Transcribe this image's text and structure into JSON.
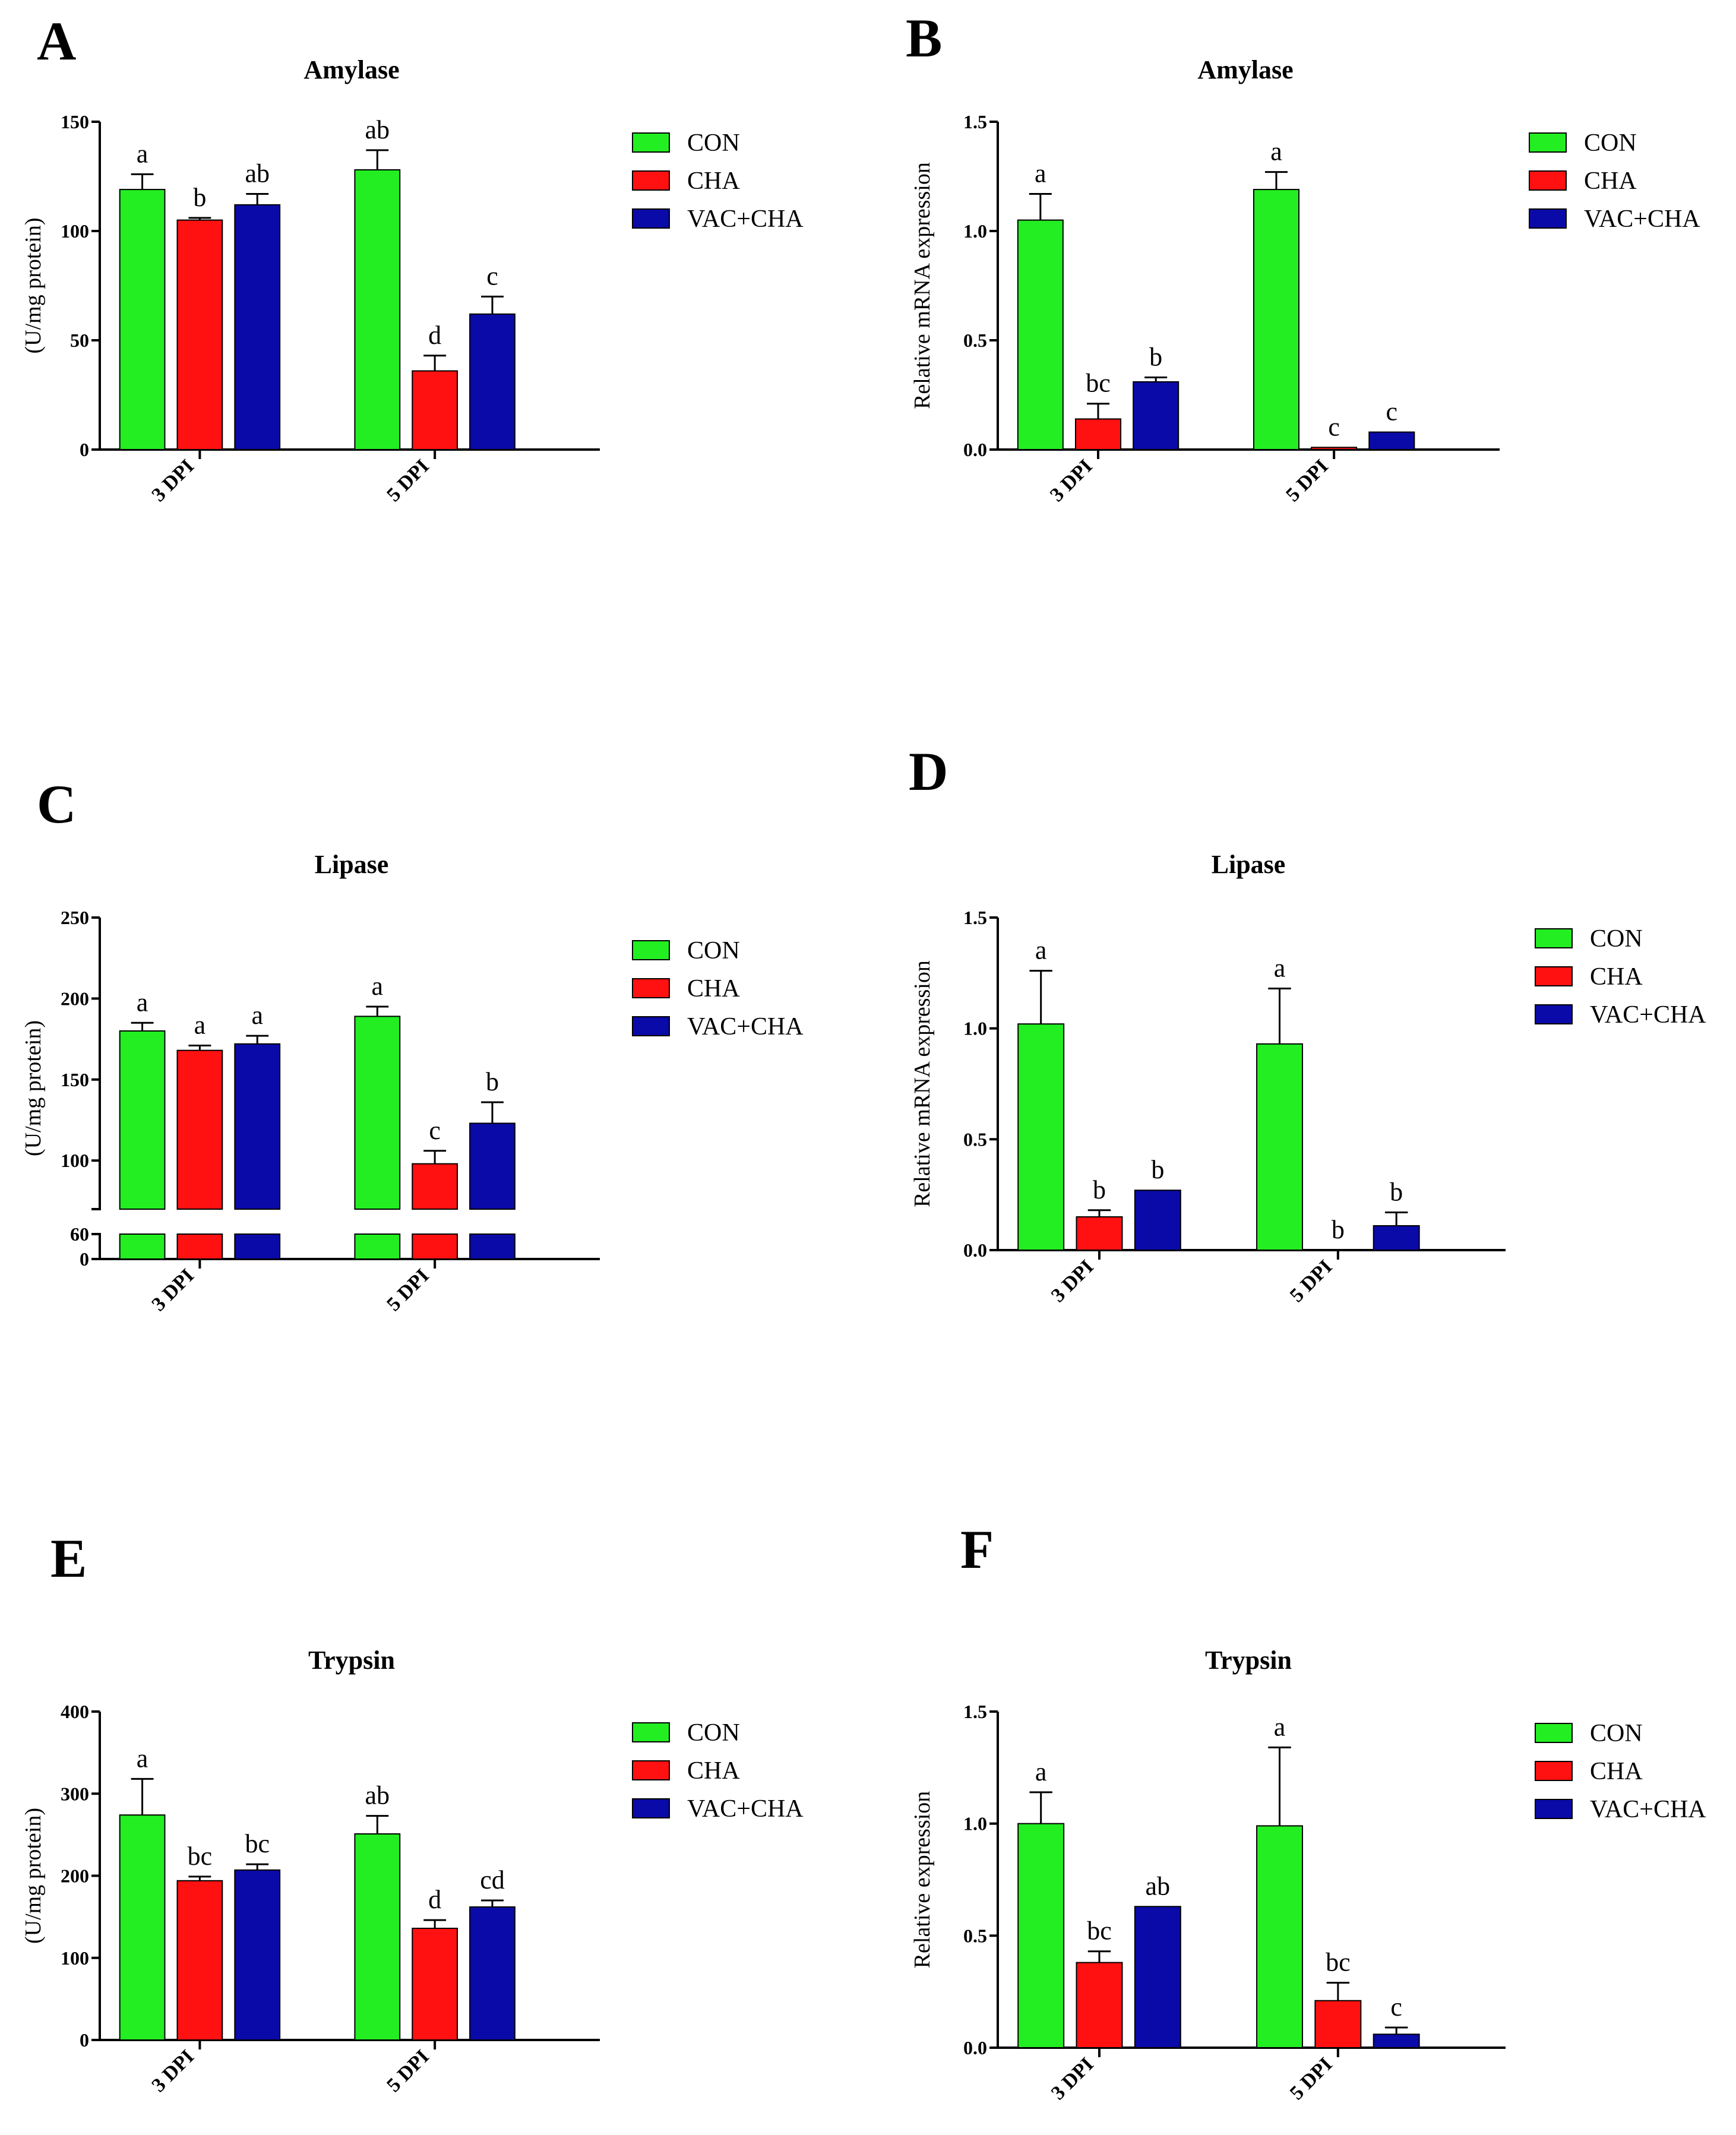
{
  "colors": {
    "CON": "#22ee22",
    "CHA": "#ff1111",
    "VAC+CHA": "#0a0aa8",
    "axis": "#000000"
  },
  "chart_data": [
    {
      "panel": "A",
      "type": "bar",
      "title": "Amylase",
      "ylabel": "(U/mg protein)",
      "xlabel": "",
      "categories": [
        "3 DPI",
        "5 DPI"
      ],
      "ylim": [
        0,
        150
      ],
      "yticks": [
        0,
        50,
        100,
        150
      ],
      "legend": {
        "position": "right",
        "entries": [
          "CON",
          "CHA",
          "VAC+CHA"
        ]
      },
      "series": [
        {
          "name": "CON",
          "values": [
            119,
            128
          ],
          "errors": [
            7,
            9
          ],
          "letters": [
            "a",
            "ab"
          ]
        },
        {
          "name": "CHA",
          "values": [
            105,
            36
          ],
          "errors": [
            1,
            7
          ],
          "letters": [
            "b",
            "d"
          ]
        },
        {
          "name": "VAC+CHA",
          "values": [
            112,
            62
          ],
          "errors": [
            5,
            8
          ],
          "letters": [
            "ab",
            "c"
          ]
        }
      ]
    },
    {
      "panel": "B",
      "type": "bar",
      "title": "Amylase",
      "ylabel": "Relative mRNA expression",
      "xlabel": "",
      "categories": [
        "3 DPI",
        "5 DPI"
      ],
      "ylim": [
        0,
        1.5
      ],
      "yticks": [
        "0.0",
        "0.5",
        "1.0",
        "1.5"
      ],
      "legend": {
        "position": "right",
        "entries": [
          "CON",
          "CHA",
          "VAC+CHA"
        ]
      },
      "series": [
        {
          "name": "CON",
          "values": [
            1.05,
            1.19
          ],
          "errors": [
            0.12,
            0.08
          ],
          "letters": [
            "a",
            "a"
          ]
        },
        {
          "name": "CHA",
          "values": [
            0.14,
            0.01
          ],
          "errors": [
            0.07,
            0.0
          ],
          "letters": [
            "bc",
            "c"
          ]
        },
        {
          "name": "VAC+CHA",
          "values": [
            0.31,
            0.08
          ],
          "errors": [
            0.02,
            0.0
          ],
          "letters": [
            "b",
            "c"
          ]
        }
      ]
    },
    {
      "panel": "C",
      "type": "bar",
      "title": "Lipase",
      "ylabel": "(U/mg protein)",
      "xlabel": "",
      "categories": [
        "3 DPI",
        "5 DPI"
      ],
      "ylim": [
        0,
        250
      ],
      "yticks": [
        0,
        60,
        100,
        150,
        200,
        250
      ],
      "axis_break": [
        60,
        70
      ],
      "legend": {
        "position": "right",
        "entries": [
          "CON",
          "CHA",
          "VAC+CHA"
        ]
      },
      "series": [
        {
          "name": "CON",
          "values": [
            180,
            189
          ],
          "errors": [
            5,
            6
          ],
          "letters": [
            "a",
            "a"
          ]
        },
        {
          "name": "CHA",
          "values": [
            168,
            98
          ],
          "errors": [
            3,
            8
          ],
          "letters": [
            "a",
            "c"
          ]
        },
        {
          "name": "VAC+CHA",
          "values": [
            172,
            123
          ],
          "errors": [
            5,
            13
          ],
          "letters": [
            "a",
            "b"
          ]
        }
      ]
    },
    {
      "panel": "D",
      "type": "bar",
      "title": "Lipase",
      "ylabel": "Relative mRNA expression",
      "xlabel": "",
      "categories": [
        "3 DPI",
        "5 DPI"
      ],
      "ylim": [
        0,
        1.5
      ],
      "yticks": [
        "0.0",
        "0.5",
        "1.0",
        "1.5"
      ],
      "legend": {
        "position": "right",
        "entries": [
          "CON",
          "CHA",
          "VAC+CHA"
        ]
      },
      "series": [
        {
          "name": "CON",
          "values": [
            1.02,
            0.93
          ],
          "errors": [
            0.24,
            0.25
          ],
          "letters": [
            "a",
            "a"
          ]
        },
        {
          "name": "CHA",
          "values": [
            0.15,
            0.0
          ],
          "errors": [
            0.03,
            0.0
          ],
          "letters": [
            "b",
            "b"
          ]
        },
        {
          "name": "VAC+CHA",
          "values": [
            0.27,
            0.11
          ],
          "errors": [
            0.0,
            0.06
          ],
          "letters": [
            "b",
            "b"
          ]
        }
      ]
    },
    {
      "panel": "E",
      "type": "bar",
      "title": "Trypsin",
      "ylabel": "(U/mg protein)",
      "xlabel": "",
      "categories": [
        "3 DPI",
        "5 DPI"
      ],
      "ylim": [
        0,
        400
      ],
      "yticks": [
        0,
        100,
        200,
        300,
        400
      ],
      "legend": {
        "position": "right",
        "entries": [
          "CON",
          "CHA",
          "VAC+CHA"
        ]
      },
      "series": [
        {
          "name": "CON",
          "values": [
            274,
            251
          ],
          "errors": [
            44,
            22
          ],
          "letters": [
            "a",
            "ab"
          ]
        },
        {
          "name": "CHA",
          "values": [
            194,
            136
          ],
          "errors": [
            5,
            10
          ],
          "letters": [
            "bc",
            "d"
          ]
        },
        {
          "name": "VAC+CHA",
          "values": [
            207,
            162
          ],
          "errors": [
            7,
            8
          ],
          "letters": [
            "bc",
            "cd"
          ]
        }
      ]
    },
    {
      "panel": "F",
      "type": "bar",
      "title": "Trypsin",
      "ylabel": "Relative expression",
      "xlabel": "",
      "categories": [
        "3 DPI",
        "5 DPI"
      ],
      "ylim": [
        0,
        1.5
      ],
      "yticks": [
        "0.0",
        "0.5",
        "1.0",
        "1.5"
      ],
      "legend": {
        "position": "right",
        "entries": [
          "CON",
          "CHA",
          "VAC+CHA"
        ]
      },
      "series": [
        {
          "name": "CON",
          "values": [
            1.0,
            0.99
          ],
          "errors": [
            0.14,
            0.35
          ],
          "letters": [
            "a",
            "a"
          ]
        },
        {
          "name": "CHA",
          "values": [
            0.38,
            0.21
          ],
          "errors": [
            0.05,
            0.08
          ],
          "letters": [
            "bc",
            "bc"
          ]
        },
        {
          "name": "VAC+CHA",
          "values": [
            0.63,
            0.06
          ],
          "errors": [
            0.0,
            0.03
          ],
          "letters": [
            "ab",
            "c"
          ]
        }
      ]
    }
  ]
}
